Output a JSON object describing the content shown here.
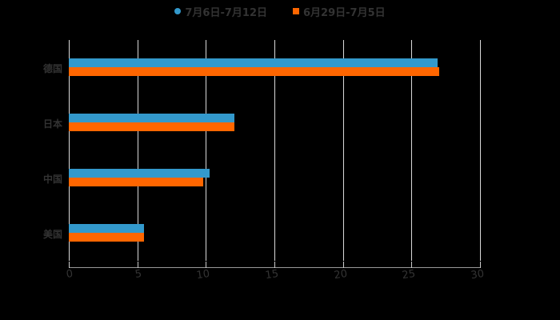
{
  "chart_data": {
    "type": "bar",
    "orientation": "horizontal",
    "title": "",
    "xlabel": "",
    "ylabel": "",
    "categories": [
      "德国",
      "日本",
      "中国",
      "美国"
    ],
    "series": [
      {
        "name": "7月6日-7月12日",
        "color": "#3399CC",
        "values": [
          26.9,
          12.1,
          10.3,
          5.5
        ]
      },
      {
        "name": "6月29日-7月5日",
        "color": "#FF6600",
        "values": [
          27.0,
          12.1,
          9.8,
          5.5
        ]
      }
    ],
    "xlim": [
      0,
      30
    ],
    "xticks": [
      "0",
      "5",
      "10",
      "15",
      "20",
      "25",
      "30"
    ],
    "grid": true,
    "legend_position": "top"
  },
  "legend": {
    "items": [
      {
        "label": "7月6日-7月12日",
        "color": "#3399CC",
        "shape": "circle"
      },
      {
        "label": "6月29日-7月5日",
        "color": "#FF6600",
        "shape": "square"
      }
    ]
  }
}
